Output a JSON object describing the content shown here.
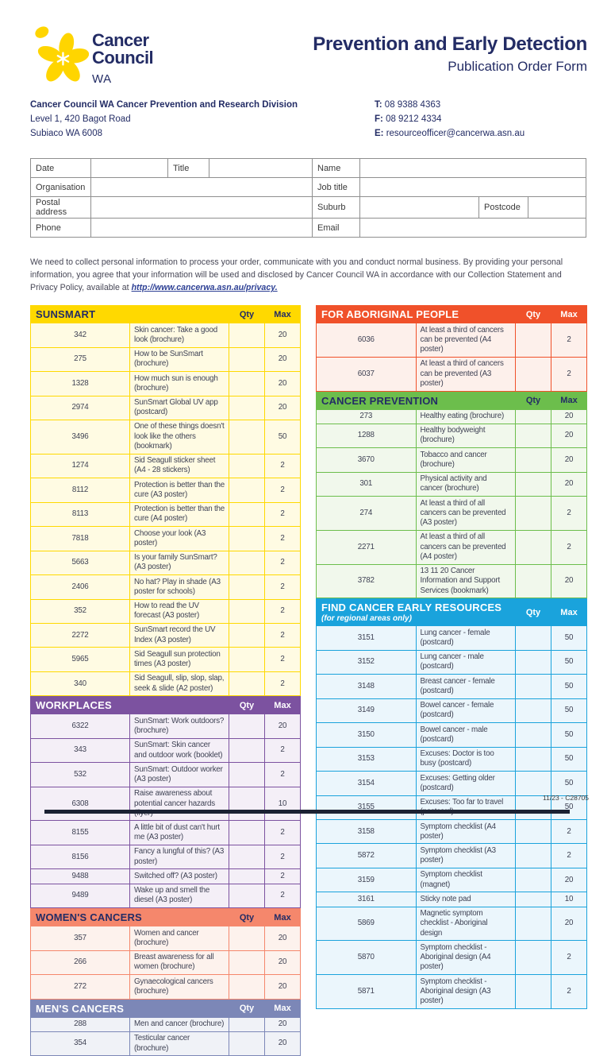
{
  "logo": {
    "brand_line1": "Cancer",
    "brand_line2": "Council",
    "region": "WA",
    "daffodil_color": "#FFD500",
    "navy": "#232C65"
  },
  "header": {
    "title": "Prevention and Early Detection",
    "subtitle": "Publication Order Form"
  },
  "org": {
    "division": "Cancer Council WA Cancer Prevention and Research Division",
    "address1": "Level 1, 420 Bagot Road",
    "address2": "Subiaco WA 6008",
    "phone_label": "T:",
    "phone": "08 9388 4363",
    "fax_label": "F:",
    "fax": "08 9212 4334",
    "email_label": "E:",
    "email": "resourceofficer@cancerwa.asn.au"
  },
  "contact_form": {
    "fields": {
      "date": "Date",
      "title": "Title",
      "name": "Name",
      "organisation": "Organisation",
      "job_title": "Job title",
      "postal_address": "Postal address",
      "suburb": "Suburb",
      "postcode": "Postcode",
      "phone": "Phone",
      "email": "Email"
    }
  },
  "privacy": {
    "text_before_link": "We need to collect personal information to process your order, communicate with you and conduct normal business. By providing your personal information, you agree that your information will be used and disclosed by Cancer Council WA in accordance with our Collection Statement and Privacy Policy, available at ",
    "link": "http://www.cancerwa.asn.au/privacy."
  },
  "labels": {
    "qty": "Qty",
    "max": "Max"
  },
  "sections": [
    {
      "id": "sunsmart",
      "column": "left",
      "title": "SUNSMART",
      "subtitle": "",
      "color": "#FFD900",
      "tint": "#FFFBE3",
      "header_text": "#232C65",
      "rows": [
        {
          "code": "342",
          "item": "Skin cancer: Take a good look (brochure)",
          "max": "20"
        },
        {
          "code": "275",
          "item": "How to be SunSmart (brochure)",
          "max": "20"
        },
        {
          "code": "1328",
          "item": "How much sun is enough (brochure)",
          "max": "20"
        },
        {
          "code": "2974",
          "item": "SunSmart Global UV app (postcard)",
          "max": "20"
        },
        {
          "code": "3496",
          "item": "One of these things doesn't look like the others (bookmark)",
          "max": "50"
        },
        {
          "code": "1274",
          "item": "Sid Seagull sticker sheet (A4 - 28 stickers)",
          "max": "2"
        },
        {
          "code": "8112",
          "item": "Protection is better than the cure (A3 poster)",
          "max": "2"
        },
        {
          "code": "8113",
          "item": "Protection is better than the cure (A4 poster)",
          "max": "2"
        },
        {
          "code": "7818",
          "item": "Choose your look (A3 poster)",
          "max": "2"
        },
        {
          "code": "5663",
          "item": "Is your family SunSmart? (A3 poster)",
          "max": "2"
        },
        {
          "code": "2406",
          "item": "No hat? Play in shade (A3 poster for schools)",
          "max": "2"
        },
        {
          "code": "352",
          "item": "How to read the UV forecast (A3 poster)",
          "max": "2"
        },
        {
          "code": "2272",
          "item": "SunSmart record the UV Index (A3 poster)",
          "max": "2"
        },
        {
          "code": "5965",
          "item": "Sid Seagull sun protection times (A3 poster)",
          "max": "2"
        },
        {
          "code": "340",
          "item": "Sid Seagull, slip, slop, slap, seek & slide (A2 poster)",
          "max": "2"
        }
      ]
    },
    {
      "id": "workplaces",
      "column": "left",
      "title": "WORKPLACES",
      "subtitle": "",
      "color": "#7C52A0",
      "tint": "#F4EFF7",
      "header_text": "#FFFFFF",
      "rows": [
        {
          "code": "6322",
          "item": "SunSmart: Work outdoors? (brochure)",
          "max": "20"
        },
        {
          "code": "343",
          "item": "SunSmart: Skin cancer and outdoor work (booklet)",
          "max": "2"
        },
        {
          "code": "532",
          "item": "SunSmart: Outdoor worker (A3 poster)",
          "max": "2"
        },
        {
          "code": "6308",
          "item": "Raise awareness about potential cancer hazards (flyer)",
          "max": "10"
        },
        {
          "code": "8155",
          "item": "A little bit of dust can't hurt me (A3 poster)",
          "max": "2"
        },
        {
          "code": "8156",
          "item": "Fancy a lungful of this? (A3 poster)",
          "max": "2"
        },
        {
          "code": "9488",
          "item": "Switched off? (A3 poster)",
          "max": "2"
        },
        {
          "code": "9489",
          "item": "Wake up and smell the diesel (A3 poster)",
          "max": "2"
        }
      ]
    },
    {
      "id": "womens-cancers",
      "column": "left",
      "title": "WOMEN'S CANCERS",
      "subtitle": "",
      "color": "#F5876C",
      "tint": "#FDF2ED",
      "header_text": "#232C65",
      "rows": [
        {
          "code": "357",
          "item": "Women and cancer (brochure)",
          "max": "20"
        },
        {
          "code": "266",
          "item": "Breast awareness for all women (brochure)",
          "max": "20"
        },
        {
          "code": "272",
          "item": "Gynaecological cancers (brochure)",
          "max": "20"
        }
      ]
    },
    {
      "id": "mens-cancers",
      "column": "left",
      "title": "MEN'S CANCERS",
      "subtitle": "",
      "color": "#7C87B7",
      "tint": "#F0F2F7",
      "header_text": "#FFFFFF",
      "rows": [
        {
          "code": "288",
          "item": "Men and cancer (brochure)",
          "max": "20"
        },
        {
          "code": "354",
          "item": "Testicular cancer (brochure)",
          "max": "20"
        }
      ]
    },
    {
      "id": "for-aboriginal-people",
      "column": "right",
      "title": "FOR ABORIGINAL PEOPLE",
      "subtitle": "",
      "color": "#F0512A",
      "tint": "#FDF0EB",
      "header_text": "#FFFFFF",
      "rows": [
        {
          "code": "6036",
          "item": "At least a third of cancers can be prevented (A4 poster)",
          "max": "2"
        },
        {
          "code": "6037",
          "item": "At least a third of cancers can be prevented (A3 poster)",
          "max": "2"
        }
      ]
    },
    {
      "id": "cancer-prevention",
      "column": "right",
      "title": "CANCER PREVENTION",
      "subtitle": "",
      "color": "#6CBE4C",
      "tint": "#F1F8EC",
      "header_text": "#232C65",
      "rows": [
        {
          "code": "273",
          "item": "Healthy eating (brochure)",
          "max": "20"
        },
        {
          "code": "1288",
          "item": "Healthy bodyweight (brochure)",
          "max": "20"
        },
        {
          "code": "3670",
          "item": "Tobacco and cancer (brochure)",
          "max": "20"
        },
        {
          "code": "301",
          "item": "Physical activity and cancer (brochure)",
          "max": "20"
        },
        {
          "code": "274",
          "item": "At least a third of all cancers can be prevented (A3 poster)",
          "max": "2"
        },
        {
          "code": "2271",
          "item": "At least a third of all cancers can be prevented (A4 poster)",
          "max": "2"
        },
        {
          "code": "3782",
          "item": "13 11 20 Cancer Information and Support Services (bookmark)",
          "max": "20"
        }
      ]
    },
    {
      "id": "find-cancer-early",
      "column": "right",
      "title": "FIND CANCER EARLY RESOURCES",
      "subtitle": "(for regional areas only)",
      "color": "#1AA3DC",
      "tint": "#EBF6FC",
      "header_text": "#FFFFFF",
      "rows": [
        {
          "code": "3151",
          "item": "Lung cancer - female (postcard)",
          "max": "50"
        },
        {
          "code": "3152",
          "item": "Lung cancer - male (postcard)",
          "max": "50"
        },
        {
          "code": "3148",
          "item": "Breast cancer - female (postcard)",
          "max": "50"
        },
        {
          "code": "3149",
          "item": "Bowel cancer - female (postcard)",
          "max": "50"
        },
        {
          "code": "3150",
          "item": "Bowel cancer - male (postcard)",
          "max": "50"
        },
        {
          "code": "3153",
          "item": "Excuses: Doctor is too busy (postcard)",
          "max": "50"
        },
        {
          "code": "3154",
          "item": "Excuses: Getting older (postcard)",
          "max": "50"
        },
        {
          "code": "3155",
          "item": "Excuses: Too far to travel (postcard)",
          "max": "50"
        },
        {
          "code": "3158",
          "item": "Symptom checklist (A4 poster)",
          "max": "2"
        },
        {
          "code": "5872",
          "item": "Symptom checklist (A3 poster)",
          "max": "2"
        },
        {
          "code": "3159",
          "item": "Symptom checklist (magnet)",
          "max": "20"
        },
        {
          "code": "3161",
          "item": "Sticky note pad",
          "max": "10"
        },
        {
          "code": "5869",
          "item": "Magnetic symptom checklist - Aboriginal design",
          "max": "20"
        },
        {
          "code": "5870",
          "item": "Symptom checklist - Aboriginal design  (A4 poster)",
          "max": "2"
        },
        {
          "code": "5871",
          "item": "Symptom checklist  - Aboriginal design (A3 poster)",
          "max": "2"
        }
      ]
    }
  ],
  "footer": {
    "doc_code": "11/23 - C28705"
  }
}
